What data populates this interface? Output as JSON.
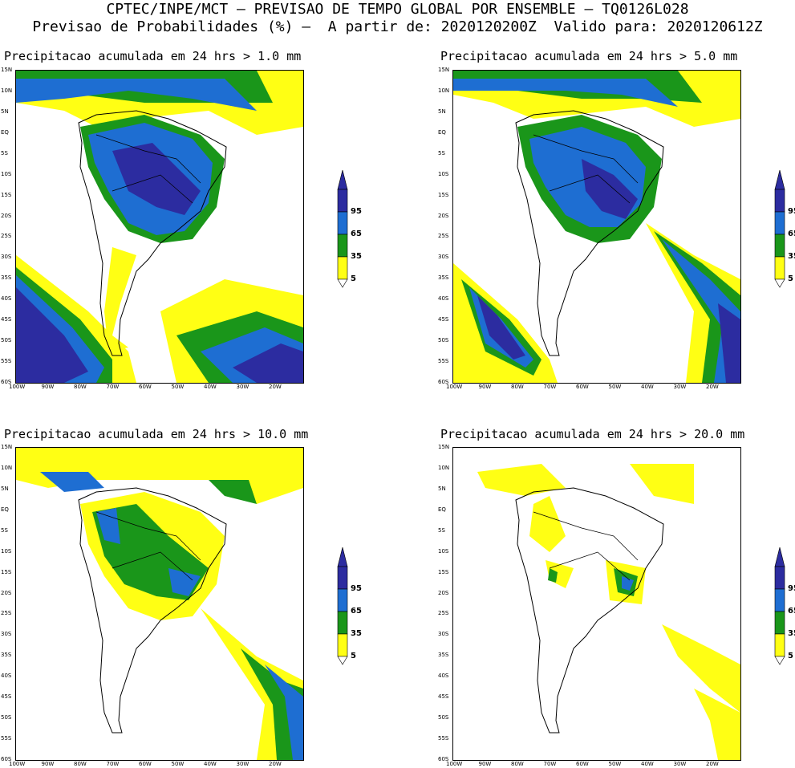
{
  "header": {
    "line1": "CPTEC/INPE/MCT – PREVISAO DE TEMPO GLOBAL POR ENSEMBLE – TQ0126L028",
    "line2": "Previsao de Probabilidades (%) –  A partir de: 2020120200Z  Valido para: 2020120612Z"
  },
  "panels": [
    {
      "title": "Precipitacao acumulada em 24 hrs > 1.0 mm"
    },
    {
      "title": "Precipitacao acumulada em 24 hrs > 5.0 mm"
    },
    {
      "title": "Precipitacao acumulada em 24 hrs > 10.0 mm"
    },
    {
      "title": "Precipitacao acumulada em 24 hrs > 20.0 mm"
    }
  ],
  "lat_ticks": [
    "15N",
    "10N",
    "5N",
    "EQ",
    "5S",
    "10S",
    "15S",
    "20S",
    "25S",
    "30S",
    "35S",
    "40S",
    "45S",
    "50S",
    "55S",
    "60S"
  ],
  "lon_ticks": [
    "100W",
    "90W",
    "80W",
    "70W",
    "60W",
    "50W",
    "40W",
    "30W",
    "20W"
  ],
  "legend": {
    "labels": [
      "95",
      "65",
      "35",
      "5"
    ],
    "colors": {
      "c95": "#2c2ca0",
      "c65": "#1e6ed2",
      "c35": "#1a961a",
      "c5": "#ffff14"
    }
  }
}
